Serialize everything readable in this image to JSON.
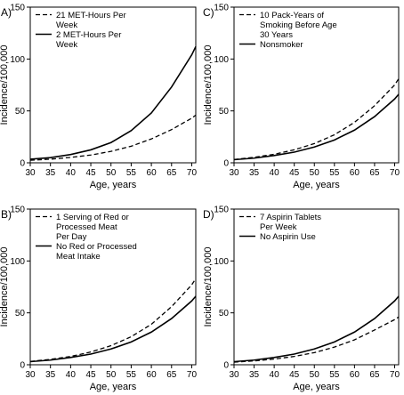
{
  "chart_data": [
    {
      "panel_label": "A)",
      "type": "line",
      "xlabel": "Age, years",
      "ylabel": "Incidence/100,000",
      "xlim": [
        30,
        71
      ],
      "ylim": [
        0,
        150
      ],
      "xticks": [
        30,
        35,
        40,
        45,
        50,
        55,
        60,
        65,
        70
      ],
      "yticks": [
        0,
        50,
        100,
        150
      ],
      "legend_position": "top-left",
      "series": [
        {
          "name": "21 MET-Hours Per Week",
          "style": "dashed",
          "legend_lines": [
            "21 MET-Hours Per",
            "Week"
          ],
          "x": [
            30,
            35,
            40,
            45,
            50,
            55,
            60,
            65,
            70,
            71
          ],
          "y": [
            2.5,
            3.5,
            5.2,
            7.5,
            11,
            16,
            23,
            32,
            43,
            46
          ]
        },
        {
          "name": "2 MET-Hours Per Week",
          "style": "solid",
          "legend_lines": [
            "2 MET-Hours Per",
            "Week"
          ],
          "x": [
            30,
            35,
            40,
            45,
            50,
            55,
            60,
            65,
            70,
            71
          ],
          "y": [
            3.5,
            5,
            8,
            12.5,
            19.5,
            31,
            48,
            73,
            104,
            112
          ]
        }
      ]
    },
    {
      "panel_label": "C)",
      "type": "line",
      "xlabel": "Age, years",
      "ylabel": "Incidence/100,000",
      "xlim": [
        30,
        71
      ],
      "ylim": [
        0,
        150
      ],
      "xticks": [
        30,
        35,
        40,
        45,
        50,
        55,
        60,
        65,
        70
      ],
      "yticks": [
        0,
        50,
        100,
        150
      ],
      "legend_position": "top-left",
      "series": [
        {
          "name": "10 Pack-Years of Smoking Before Age 30 Years",
          "style": "dashed",
          "legend_lines": [
            "10 Pack-Years of",
            "Smoking Before Age",
            "30 Years"
          ],
          "x": [
            30,
            35,
            40,
            45,
            50,
            55,
            60,
            65,
            70,
            71
          ],
          "y": [
            3.2,
            5.3,
            8.2,
            12.5,
            18.5,
            27,
            39,
            55,
            75,
            81
          ]
        },
        {
          "name": "Nonsmoker",
          "style": "solid",
          "legend_lines": [
            "Nonsmoker"
          ],
          "x": [
            30,
            35,
            40,
            45,
            50,
            55,
            60,
            65,
            70,
            71
          ],
          "y": [
            3,
            4.5,
            7,
            10.3,
            15.2,
            22,
            31.5,
            44.5,
            61.5,
            66
          ]
        }
      ]
    },
    {
      "panel_label": "B)",
      "type": "line",
      "xlabel": "Age, years",
      "ylabel": "Incidence/100,000",
      "xlim": [
        30,
        71
      ],
      "ylim": [
        0,
        150
      ],
      "xticks": [
        30,
        35,
        40,
        45,
        50,
        55,
        60,
        65,
        70
      ],
      "yticks": [
        0,
        50,
        100,
        150
      ],
      "legend_position": "top-left",
      "series": [
        {
          "name": "1 Serving of Red or Processed Meat Per Day",
          "style": "dashed",
          "legend_lines": [
            "1 Serving of Red or",
            "Processed Meat",
            "Per Day"
          ],
          "x": [
            30,
            35,
            40,
            45,
            50,
            55,
            60,
            65,
            70,
            71
          ],
          "y": [
            3.2,
            5.2,
            8,
            12.3,
            18.4,
            27,
            39,
            56,
            77,
            83
          ]
        },
        {
          "name": "No Red or Processed Meat Intake",
          "style": "solid",
          "legend_lines": [
            "No Red or Processed",
            "Meat Intake"
          ],
          "x": [
            30,
            35,
            40,
            45,
            50,
            55,
            60,
            65,
            70,
            71
          ],
          "y": [
            3,
            4.5,
            7,
            10.3,
            15.2,
            22,
            31.5,
            44.5,
            61.5,
            66
          ]
        }
      ]
    },
    {
      "panel_label": "D)",
      "type": "line",
      "xlabel": "Age, years",
      "ylabel": "Incidence/100,000",
      "xlim": [
        30,
        71
      ],
      "ylim": [
        0,
        150
      ],
      "xticks": [
        30,
        35,
        40,
        45,
        50,
        55,
        60,
        65,
        70
      ],
      "yticks": [
        0,
        50,
        100,
        150
      ],
      "legend_position": "top-left",
      "series": [
        {
          "name": "7 Aspirin Tablets Per Week",
          "style": "dashed",
          "legend_lines": [
            "7 Aspirin Tablets",
            "Per Week"
          ],
          "x": [
            30,
            35,
            40,
            45,
            50,
            55,
            60,
            65,
            70,
            71
          ],
          "y": [
            2.5,
            3.7,
            5.5,
            8,
            11.7,
            17,
            24,
            33.5,
            43.5,
            46
          ]
        },
        {
          "name": "No Aspirin Use",
          "style": "solid",
          "legend_lines": [
            "No Aspirin Use"
          ],
          "x": [
            30,
            35,
            40,
            45,
            50,
            55,
            60,
            65,
            70,
            71
          ],
          "y": [
            3,
            4.5,
            7,
            10.3,
            15.2,
            22,
            31.5,
            44.5,
            61.5,
            66
          ]
        }
      ]
    }
  ]
}
